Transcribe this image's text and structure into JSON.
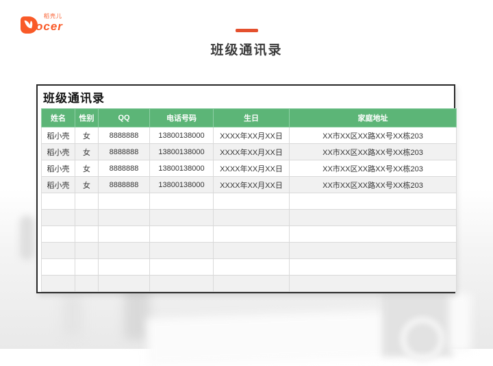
{
  "brand": {
    "logo_rest": "ocer",
    "logo_cn": "稻壳儿"
  },
  "page": {
    "title": "班级通讯录"
  },
  "card": {
    "title": "班级通讯录"
  },
  "table": {
    "columns": [
      "姓名",
      "性别",
      "QQ",
      "电话号码",
      "生日",
      "家庭地址"
    ],
    "rows": [
      [
        "稻小壳",
        "女",
        "8888888",
        "13800138000",
        "XXXX年XX月XX日",
        "XX市XX区XX路XX号XX栋203"
      ],
      [
        "稻小壳",
        "女",
        "8888888",
        "13800138000",
        "XXXX年XX月XX日",
        "XX市XX区XX路XX号XX栋203"
      ],
      [
        "稻小壳",
        "女",
        "8888888",
        "13800138000",
        "XXXX年XX月XX日",
        "XX市XX区XX路XX号XX栋203"
      ],
      [
        "稻小壳",
        "女",
        "8888888",
        "13800138000",
        "XXXX年XX月XX日",
        "XX市XX区XX路XX号XX栋203"
      ]
    ],
    "empty_row_count": 6
  },
  "colors": {
    "logo_orange": "#f95a28",
    "accent_orange": "#e4502e",
    "header_green": "#5cb577",
    "row_alt_gray": "#f1f1f1",
    "card_border": "#272727"
  }
}
